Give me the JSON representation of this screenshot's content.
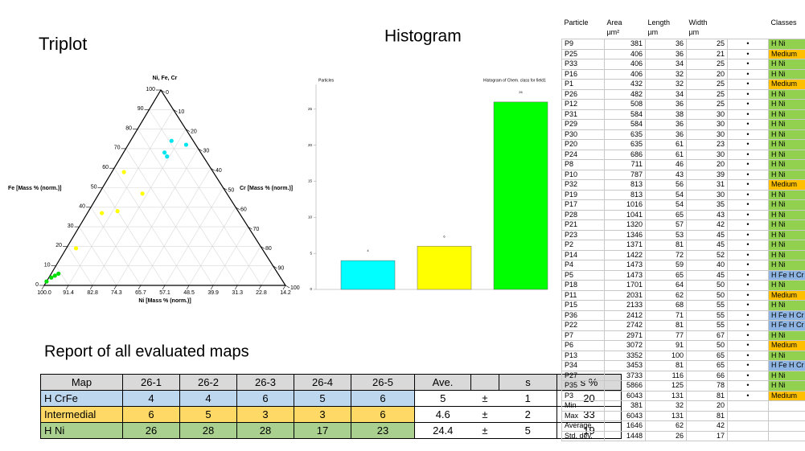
{
  "triplot": {
    "type": "ternary",
    "title": "Triplot",
    "apex_label": "Ni, Fe, Cr",
    "left_label": "Fe [Mass % (norm.)]",
    "right_label": "Cr [Mass % (norm.)]",
    "bottom_label": "Ni [Mass % (norm.)]",
    "left_lim": [
      0,
      100
    ],
    "right_lim": [
      0,
      100
    ],
    "bottom_lim": [
      100,
      14.2
    ],
    "left_ticks": [
      0,
      10,
      20,
      30,
      40,
      50,
      60,
      70,
      80,
      90,
      100
    ],
    "right_ticks": [
      0,
      10,
      20,
      30,
      40,
      50,
      60,
      70,
      80,
      90,
      100
    ],
    "bottom_ticks": [
      {
        "value": 100,
        "label": "100.0"
      },
      91.4,
      82.8,
      74.3,
      65.7,
      57.1,
      48.5,
      39.9,
      31.3,
      22.8,
      14.2
    ],
    "groups": [
      {
        "color": "#00e5ee",
        "points": [
          [
            74,
            17
          ],
          [
            72,
            24
          ],
          [
            68,
            17
          ],
          [
            66,
            19
          ]
        ]
      },
      {
        "color": "#ffff00",
        "points": [
          [
            58,
            5
          ],
          [
            47,
            18
          ],
          [
            38,
            12
          ],
          [
            37,
            6
          ],
          [
            19,
            4
          ]
        ]
      },
      {
        "color": "#00dd00",
        "points": [
          [
            6,
            3
          ],
          [
            5,
            2
          ],
          [
            4,
            1
          ],
          [
            2,
            0
          ]
        ]
      }
    ]
  },
  "histogram": {
    "type": "bar",
    "title": "Histogram",
    "y_label": "Particles",
    "note": "Histogram of Chem. class for field1",
    "categories": [
      null,
      null,
      null
    ],
    "values": [
      4,
      6,
      26
    ],
    "colors": [
      "#00ffff",
      "#ffff00",
      "#00ff00"
    ],
    "ylim": [
      0,
      29
    ],
    "yticks": [
      0,
      5,
      10,
      15,
      20,
      25
    ]
  },
  "report": {
    "title": "Report of all evaluated maps",
    "columns": [
      "Map",
      "26-1",
      "26-2",
      "26-3",
      "26-4",
      "26-5",
      "Ave.",
      "s",
      "s %"
    ],
    "rows": [
      {
        "label": "H CrFe",
        "values": [
          4,
          4,
          6,
          5,
          6
        ],
        "ave": 5,
        "pm": "±",
        "s": 1,
        "s_pct": 20,
        "color": "#bdd7ee"
      },
      {
        "label": "Intermedial",
        "values": [
          6,
          5,
          3,
          3,
          6
        ],
        "ave": 4.6,
        "pm": "±",
        "s": 2,
        "s_pct": 33,
        "color": "#ffd966"
      },
      {
        "label": "H Ni",
        "values": [
          26,
          28,
          28,
          17,
          23
        ],
        "ave": 24.4,
        "pm": "±",
        "s": 5,
        "s_pct": 19,
        "color": "#a9d08e"
      }
    ]
  },
  "particles": {
    "columns": [
      {
        "name": "Particle"
      },
      {
        "name": "Area",
        "unit": "µm²"
      },
      {
        "name": "Length",
        "unit": "µm"
      },
      {
        "name": "Width",
        "unit": "µm"
      },
      {
        "name": "Classes"
      }
    ],
    "marker": "•",
    "class_colors": {
      "H Ni": "#92d050",
      "Medium": "#ffc000",
      "H Fe H Cr": "#8db4e2"
    },
    "rows": [
      [
        "P9",
        381,
        36,
        25,
        "H Ni"
      ],
      [
        "P25",
        406,
        36,
        21,
        "Medium"
      ],
      [
        "P33",
        406,
        34,
        25,
        "H Ni"
      ],
      [
        "P16",
        406,
        32,
        20,
        "H Ni"
      ],
      [
        "P1",
        432,
        32,
        25,
        "Medium"
      ],
      [
        "P26",
        482,
        34,
        25,
        "H Ni"
      ],
      [
        "P12",
        508,
        36,
        25,
        "H Ni"
      ],
      [
        "P31",
        584,
        38,
        30,
        "H Ni"
      ],
      [
        "P29",
        584,
        36,
        30,
        "H Ni"
      ],
      [
        "P30",
        635,
        36,
        30,
        "H Ni"
      ],
      [
        "P20",
        635,
        61,
        23,
        "H Ni"
      ],
      [
        "P24",
        686,
        61,
        30,
        "H Ni"
      ],
      [
        "P8",
        711,
        46,
        20,
        "H Ni"
      ],
      [
        "P10",
        787,
        43,
        39,
        "H Ni"
      ],
      [
        "P32",
        813,
        56,
        31,
        "Medium"
      ],
      [
        "P19",
        813,
        54,
        30,
        "H Ni"
      ],
      [
        "P17",
        1016,
        54,
        35,
        "H Ni"
      ],
      [
        "P28",
        1041,
        65,
        43,
        "H Ni"
      ],
      [
        "P21",
        1320,
        57,
        42,
        "H Ni"
      ],
      [
        "P23",
        1346,
        53,
        45,
        "H Ni"
      ],
      [
        "P2",
        1371,
        81,
        45,
        "H Ni"
      ],
      [
        "P14",
        1422,
        72,
        52,
        "H Ni"
      ],
      [
        "P4",
        1473,
        59,
        40,
        "H Ni"
      ],
      [
        "P5",
        1473,
        65,
        45,
        "H Fe H Cr"
      ],
      [
        "P18",
        1701,
        64,
        50,
        "H Ni"
      ],
      [
        "P11",
        2031,
        62,
        50,
        "Medium"
      ],
      [
        "P15",
        2133,
        68,
        55,
        "H Ni"
      ],
      [
        "P36",
        2412,
        71,
        55,
        "H Fe H Cr"
      ],
      [
        "P22",
        2742,
        81,
        55,
        "H Fe H Cr"
      ],
      [
        "P7",
        2971,
        77,
        67,
        "H Ni"
      ],
      [
        "P6",
        3072,
        91,
        50,
        "Medium"
      ],
      [
        "P13",
        3352,
        100,
        65,
        "H Ni"
      ],
      [
        "P34",
        3453,
        81,
        65,
        "H Fe H Cr"
      ],
      [
        "P27",
        3733,
        116,
        66,
        "H Ni"
      ],
      [
        "P35",
        5866,
        125,
        78,
        "H Ni"
      ],
      [
        "P3",
        6043,
        131,
        81,
        "Medium"
      ]
    ],
    "stats": [
      [
        "Min",
        381,
        32,
        20
      ],
      [
        "Max",
        6043,
        131,
        81
      ],
      [
        "Average",
        1646,
        62,
        42
      ],
      [
        "Std. dev.",
        1448,
        26,
        17
      ]
    ]
  }
}
